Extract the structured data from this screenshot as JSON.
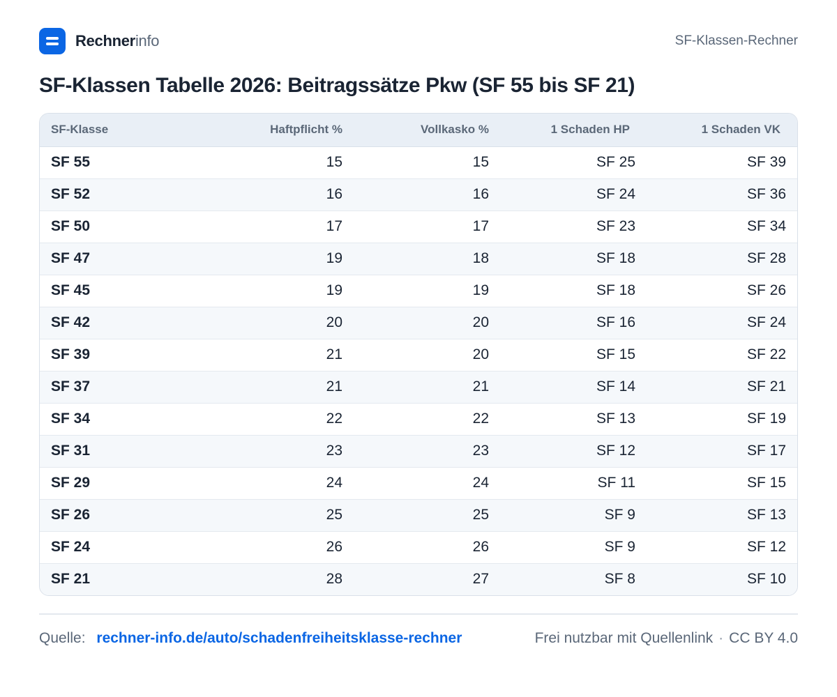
{
  "brand": {
    "name_bold": "Rechner",
    "name_light": "info"
  },
  "header_right": "SF-Klassen-Rechner",
  "title": "SF-Klassen Tabelle 2026: Beitragssätze Pkw (SF 55 bis SF 21)",
  "table": {
    "columns": [
      "SF-Klasse",
      "Haftpflicht %",
      "Vollkasko %",
      "1 Schaden HP",
      "1 Schaden VK"
    ],
    "rows": [
      [
        "SF 55",
        "15",
        "15",
        "SF 25",
        "SF 39"
      ],
      [
        "SF 52",
        "16",
        "16",
        "SF 24",
        "SF 36"
      ],
      [
        "SF 50",
        "17",
        "17",
        "SF 23",
        "SF 34"
      ],
      [
        "SF 47",
        "19",
        "18",
        "SF 18",
        "SF 28"
      ],
      [
        "SF 45",
        "19",
        "19",
        "SF 18",
        "SF 26"
      ],
      [
        "SF 42",
        "20",
        "20",
        "SF 16",
        "SF 24"
      ],
      [
        "SF 39",
        "21",
        "20",
        "SF 15",
        "SF 22"
      ],
      [
        "SF 37",
        "21",
        "21",
        "SF 14",
        "SF 21"
      ],
      [
        "SF 34",
        "22",
        "22",
        "SF 13",
        "SF 19"
      ],
      [
        "SF 31",
        "23",
        "23",
        "SF 12",
        "SF 17"
      ],
      [
        "SF 29",
        "24",
        "24",
        "SF 11",
        "SF 15"
      ],
      [
        "SF 26",
        "25",
        "25",
        "SF 9",
        "SF 13"
      ],
      [
        "SF 24",
        "26",
        "26",
        "SF 9",
        "SF 12"
      ],
      [
        "SF 21",
        "28",
        "27",
        "SF 8",
        "SF 10"
      ]
    ]
  },
  "footer": {
    "source_label": "Quelle:",
    "source_link": "rechner-info.de/auto/schadenfreiheitsklasse-rechner",
    "usage": "Frei nutzbar mit Quellenlink",
    "separator": "·",
    "license": "CC BY 4.0"
  },
  "colors": {
    "accent": "#0b66e4",
    "text": "#1a2433",
    "muted": "#5a6778",
    "header_bg": "#e9eff6"
  },
  "icons": {
    "logo": "rechnerinfo-logo-icon"
  }
}
